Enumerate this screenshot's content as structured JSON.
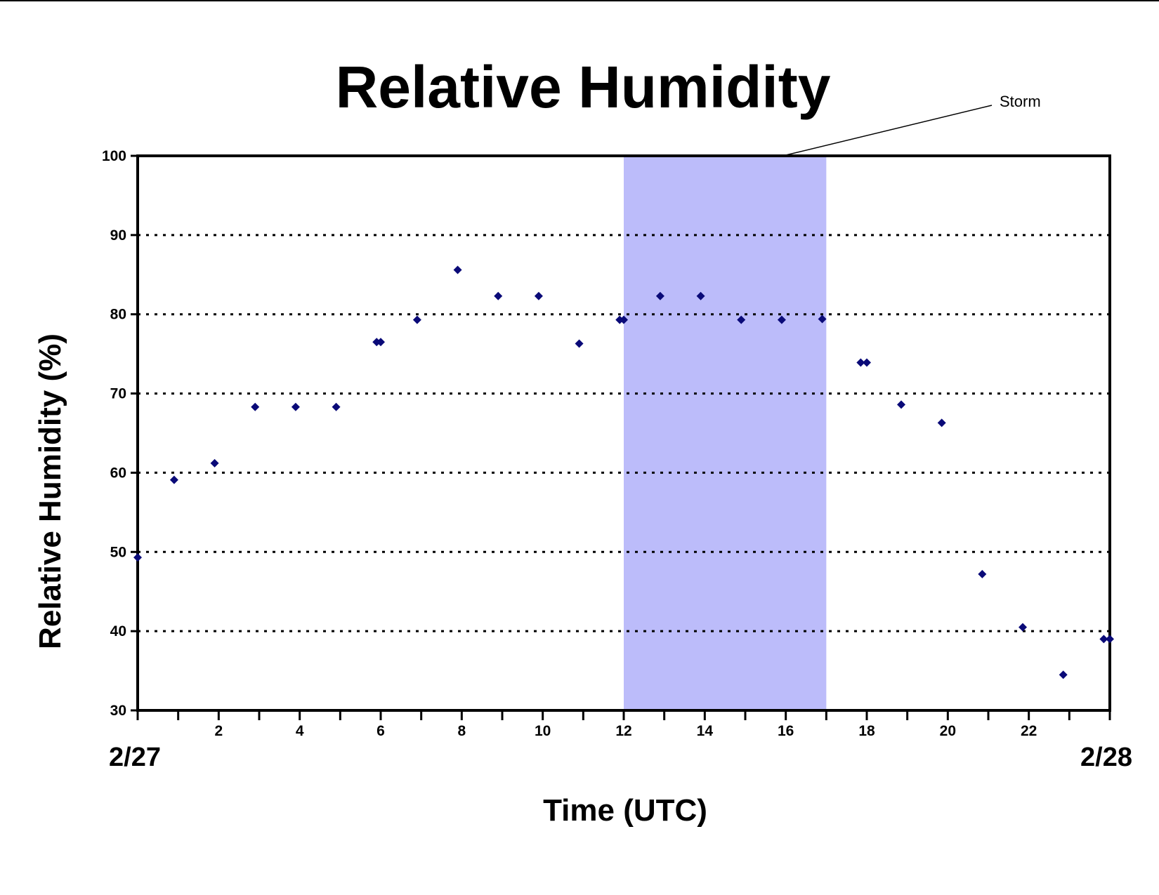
{
  "chart_data": {
    "type": "scatter",
    "title": "Relative Humidity",
    "xlabel": "Time (UTC)",
    "ylabel": "Relative Humidity (%)",
    "xlim": [
      0,
      24
    ],
    "ylim": [
      30,
      100
    ],
    "x_ticks": [
      2,
      4,
      6,
      8,
      10,
      12,
      14,
      16,
      18,
      20,
      22
    ],
    "y_ticks": [
      30,
      40,
      50,
      60,
      70,
      80,
      90,
      100
    ],
    "date_labels": {
      "start": "2/27",
      "end": "2/28"
    },
    "grid": "horizontal dotted at 40-90",
    "highlight_region": {
      "x_start": 12,
      "x_end": 17,
      "label": "Storm",
      "color": "#bcbcfa"
    },
    "marker_color": "#0a0a78",
    "series": [
      {
        "x": [
          0,
          0.9,
          1.9,
          2.9,
          3.9,
          4.9,
          5.9,
          6.0,
          6.9,
          7.9,
          8.9,
          9.9,
          10.9,
          11.9,
          12.0,
          12.9,
          13.9,
          14.9,
          15.9,
          16.9,
          17.85,
          18.0,
          18.85,
          19.85,
          20.85,
          21.85,
          22.85,
          23.85,
          24.0
        ],
        "y": [
          49.3,
          59.1,
          61.2,
          68.3,
          68.3,
          68.3,
          76.5,
          76.5,
          79.3,
          85.6,
          82.3,
          82.3,
          76.3,
          79.3,
          79.3,
          82.3,
          82.3,
          79.3,
          79.3,
          79.4,
          73.9,
          73.9,
          68.6,
          66.3,
          47.2,
          40.5,
          34.5,
          39.0,
          39.0
        ]
      }
    ]
  }
}
